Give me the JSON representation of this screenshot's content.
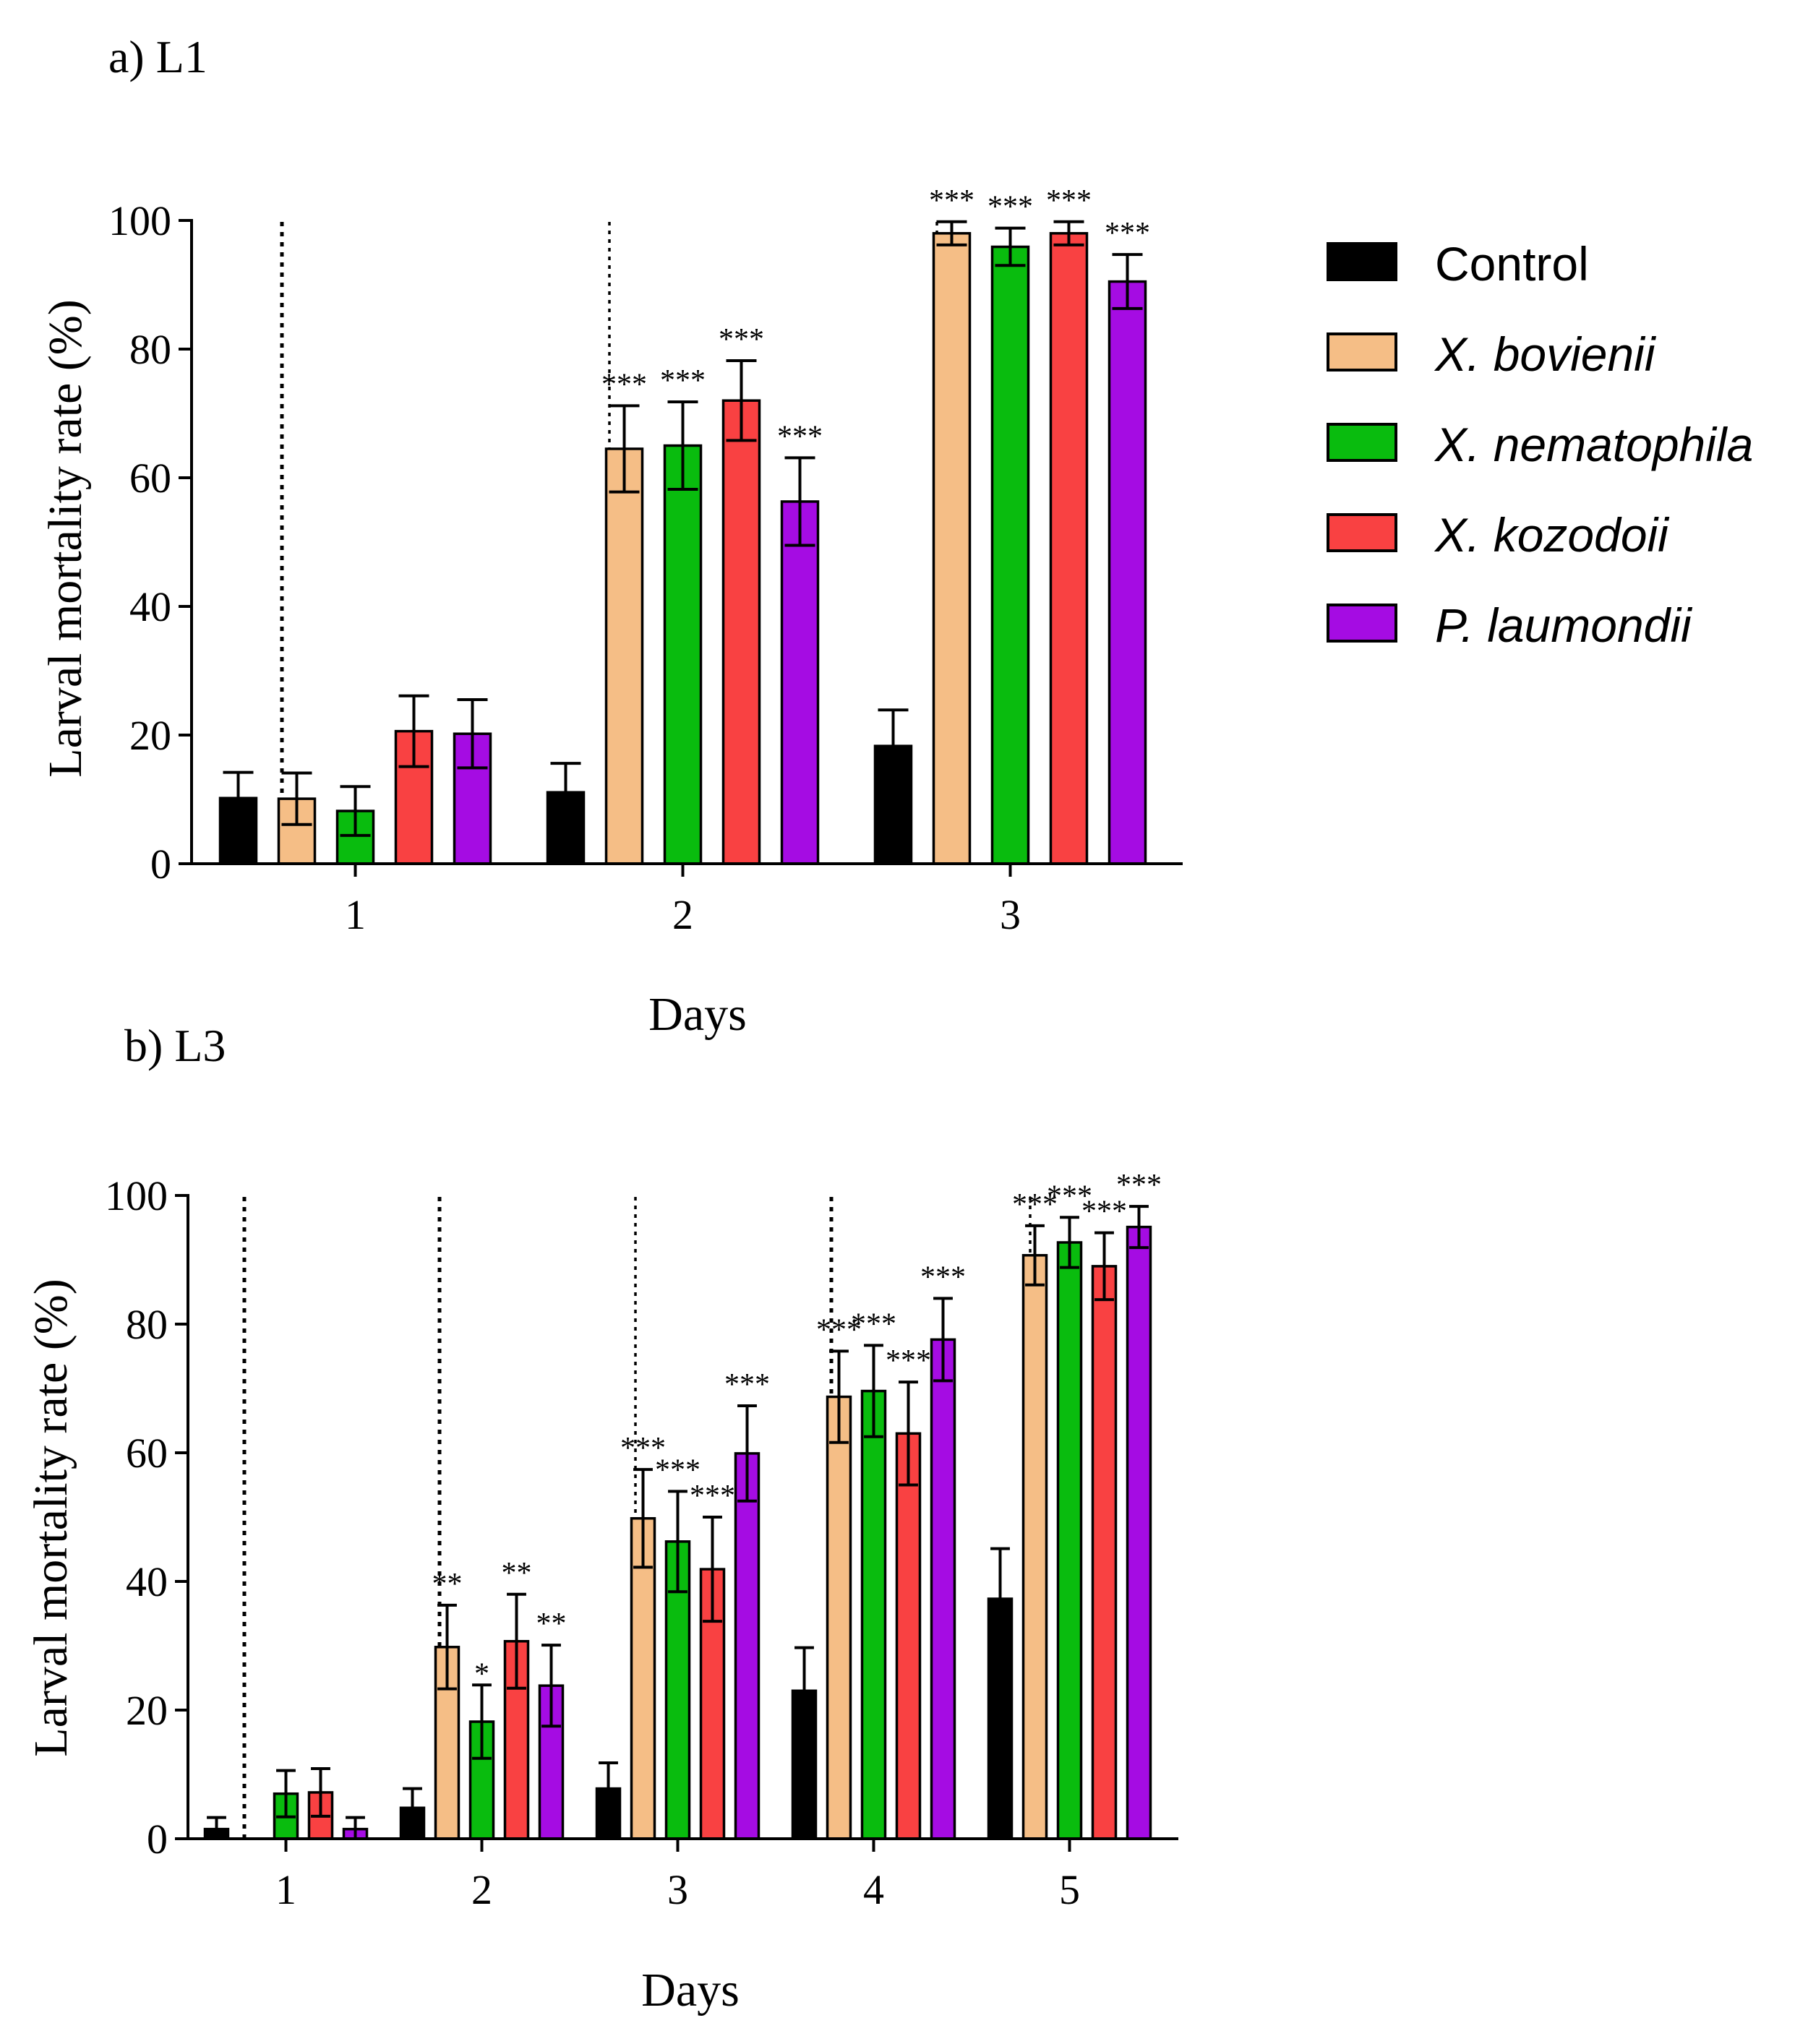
{
  "legend": {
    "items": [
      {
        "label": "Control",
        "italic": false
      },
      {
        "label": "X. bovienii",
        "italic": true
      },
      {
        "label": "X. nematophila",
        "italic": true
      },
      {
        "label": "X. kozodoii",
        "italic": true
      },
      {
        "label": "P. laumondii",
        "italic": true
      }
    ]
  },
  "colors": {
    "Control": "#000000",
    "X. bovienii": "#F5BE86",
    "X. nematophila": "#09BC0E",
    "X. kozodoii": "#F94142",
    "P. laumondii": "#A50CE3"
  },
  "chart_data": [
    {
      "type": "bar",
      "title": "a) L1",
      "xlabel": "Days",
      "ylabel": "Larval mortality rate (%)",
      "ylim": [
        0,
        100
      ],
      "yticks": [
        0,
        20,
        40,
        60,
        80,
        100
      ],
      "categories": [
        "1",
        "2",
        "3"
      ],
      "series": [
        {
          "name": "Control",
          "values": [
            10.2,
            11.1,
            18.3
          ],
          "errors": [
            4.0,
            4.5,
            5.6
          ],
          "sig": [
            "",
            "",
            ""
          ]
        },
        {
          "name": "X. bovienii",
          "values": [
            10.1,
            64.5,
            98.0
          ],
          "errors": [
            4.0,
            6.7,
            1.8
          ],
          "sig": [
            "",
            "***",
            "***"
          ]
        },
        {
          "name": "X. nematophila",
          "values": [
            8.2,
            65.0,
            95.9
          ],
          "errors": [
            3.8,
            6.8,
            2.9
          ],
          "sig": [
            "",
            "***",
            "***"
          ]
        },
        {
          "name": "X. kozodoii",
          "values": [
            20.6,
            72.0,
            98.0
          ],
          "errors": [
            5.5,
            6.2,
            1.8
          ],
          "sig": [
            "",
            "***",
            "***"
          ]
        },
        {
          "name": "P. laumondii",
          "values": [
            20.2,
            56.3,
            90.5
          ],
          "errors": [
            5.3,
            6.8,
            4.2
          ],
          "sig": [
            "",
            "***",
            "***"
          ]
        }
      ]
    },
    {
      "type": "bar",
      "title": "b) L3",
      "xlabel": "Days",
      "ylabel": "Larval mortality rate (%)",
      "ylim": [
        0,
        100
      ],
      "yticks": [
        0,
        20,
        40,
        60,
        80,
        100
      ],
      "categories": [
        "1",
        "2",
        "3",
        "4",
        "5"
      ],
      "series": [
        {
          "name": "Control",
          "values": [
            1.5,
            4.8,
            7.8,
            23.0,
            37.3
          ],
          "errors": [
            1.8,
            3.0,
            4.0,
            6.7,
            7.8
          ],
          "sig": [
            "",
            "",
            "",
            "",
            ""
          ]
        },
        {
          "name": "X. bovienii",
          "values": [
            0,
            29.8,
            49.8,
            68.7,
            90.7
          ],
          "errors": [
            0,
            6.5,
            7.6,
            7.1,
            4.6
          ],
          "sig": [
            "",
            "**",
            "***",
            "***",
            "***"
          ]
        },
        {
          "name": "X. nematophila",
          "values": [
            7.0,
            18.2,
            46.2,
            69.6,
            92.7
          ],
          "errors": [
            3.6,
            5.7,
            7.8,
            7.1,
            3.9
          ],
          "sig": [
            "",
            "*",
            "***",
            "***",
            "***"
          ]
        },
        {
          "name": "X. kozodoii",
          "values": [
            7.2,
            30.7,
            41.9,
            63.0,
            89.0
          ],
          "errors": [
            3.7,
            7.3,
            8.1,
            8.0,
            5.2
          ],
          "sig": [
            "",
            "**",
            "***",
            "***",
            "***"
          ]
        },
        {
          "name": "P. laumondii",
          "values": [
            1.5,
            23.8,
            59.9,
            77.6,
            95.1
          ],
          "errors": [
            1.8,
            6.3,
            7.4,
            6.4,
            3.2
          ],
          "sig": [
            "",
            "**",
            "***",
            "***",
            "***"
          ]
        }
      ]
    }
  ]
}
